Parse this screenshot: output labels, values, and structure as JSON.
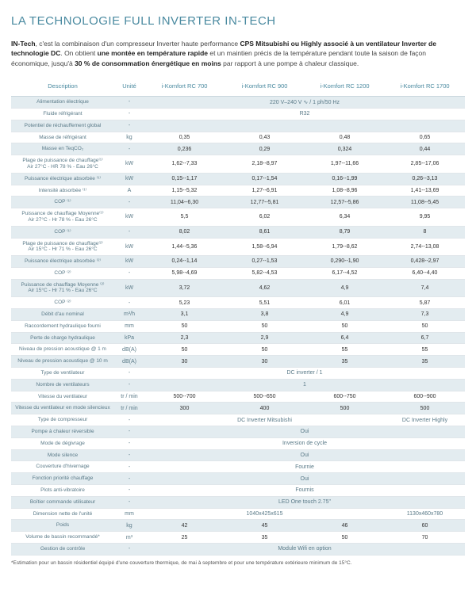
{
  "title": "LA TECHNOLOGIE FULL INVERTER IN-TECH",
  "intro_html": "<b>IN-Tech</b>, c'est la combinaison d'un compresseur Inverter haute performance <b>CPS Mitsubishi ou Highly associé à un ventilateur Inverter de technologie DC</b>. On obtient <b>une montée en température rapide</b> et un maintien précis de la température pendant toute la saison de façon économique, jusqu'à <b>30 % de consommation énergétique en moins</b> par rapport à une pompe à chaleur classique.",
  "columns": [
    "Description",
    "Unité",
    "i-Komfort RC 700",
    "i-Komfort RC 900",
    "i-Komfort RC 1200",
    "i-Komfort RC 1700"
  ],
  "colors": {
    "accent": "#4a8aa0",
    "band": "#e3ecf0",
    "border": "#e0e6ea"
  },
  "footnote": "*Estimation pour un bassin résidentiel équipé d'une couverture thermique, de mai à septembre et pour une température extérieure minimum de 15°C.",
  "rows": [
    {
      "band": true,
      "desc": "Alimentation électrique",
      "unit": "-",
      "span": "220 V–240 V ∿ / 1 ph/50 Hz"
    },
    {
      "band": false,
      "desc": "Fluide réfrigérant",
      "unit": "-",
      "span": "R32"
    },
    {
      "band": true,
      "desc": "Potentiel de réchauffement global",
      "unit": "-",
      "span": ""
    },
    {
      "band": false,
      "desc": "Masse de réfrigérant",
      "unit": "kg",
      "cells": [
        "0,35",
        "0,43",
        "0,48",
        "0,65"
      ]
    },
    {
      "band": true,
      "desc": "Masse en TeqCO₂",
      "unit": "-",
      "cells": [
        "0,236",
        "0,29",
        "0,324",
        "0,44"
      ]
    },
    {
      "band": false,
      "desc": "Plage de puissance de chauffage⁽¹⁾\nAir 27°C - HR 78 % - Eau 26°C",
      "unit": "kW",
      "cells": [
        "1,62--7,33",
        "2,18--8,97",
        "1,97--11,66",
        "2,85--17,06"
      ]
    },
    {
      "band": true,
      "desc": "Puissance électrique absorbée ⁽¹⁾",
      "unit": "kW",
      "cells": [
        "0,15--1,17",
        "0,17--1,54",
        "0,16--1,99",
        "0,26--3,13"
      ]
    },
    {
      "band": false,
      "desc": "Intensité absorbée ⁽¹⁾",
      "unit": "A",
      "cells": [
        "1,15--5,32",
        "1,27--6,91",
        "1,08--8,96",
        "1,41--13,69"
      ]
    },
    {
      "band": true,
      "desc": "COP ⁽¹⁾",
      "unit": "-",
      "cells": [
        "11,04--6,30",
        "12,77--5,81",
        "12,57--5,86",
        "11,08--5,45"
      ]
    },
    {
      "band": false,
      "desc": "Puissance de chauffage Moyenne⁽¹⁾\nAir 27°C - Hr 78 % - Eau 26°C",
      "unit": "kW",
      "cells": [
        "5,5",
        "6,02",
        "6,34",
        "9,95"
      ]
    },
    {
      "band": true,
      "desc": "COP ⁽¹⁾",
      "unit": "-",
      "cells": [
        "8,02",
        "8,61",
        "8,79",
        "8"
      ]
    },
    {
      "band": false,
      "desc": "Plage de puissance de chauffage⁽²⁾\nAir 15°C - Hr 71 % - Eau 26°C",
      "unit": "kW",
      "cells": [
        "1,44--5,36",
        "1,58--6,94",
        "1,79--8,62",
        "2,74--13,08"
      ]
    },
    {
      "band": true,
      "desc": "Puissance électrique absorbée ⁽²⁾",
      "unit": "kW",
      "cells": [
        "0,24--1,14",
        "0,27--1,53",
        "0,290--1,90",
        "0,428--2,97"
      ]
    },
    {
      "band": false,
      "desc": "COP ⁽²⁾",
      "unit": "-",
      "cells": [
        "5,98--4,69",
        "5,82--4,53",
        "6,17--4,52",
        "6,40--4,40"
      ]
    },
    {
      "band": true,
      "desc": "Puissance de chauffage Moyenne ⁽²⁾\nAir 15°C - Hr 71 % - Eau 26°C",
      "unit": "kW",
      "cells": [
        "3,72",
        "4,62",
        "4,9",
        "7,4"
      ]
    },
    {
      "band": false,
      "desc": "COP ⁽²⁾",
      "unit": "-",
      "cells": [
        "5,23",
        "5,51",
        "6,01",
        "5,87"
      ]
    },
    {
      "band": true,
      "desc": "Débit d'au nominal",
      "unit": "m³/h",
      "cells": [
        "3,1",
        "3,8",
        "4,9",
        "7,3"
      ]
    },
    {
      "band": false,
      "desc": "Raccordement hydraulique fourni",
      "unit": "mm",
      "cells": [
        "50",
        "50",
        "50",
        "50"
      ]
    },
    {
      "band": true,
      "desc": "Perte de charge hydraulique",
      "unit": "kPa",
      "cells": [
        "2,3",
        "2,9",
        "6,4",
        "6,7"
      ]
    },
    {
      "band": false,
      "desc": "Niveau de pression acoustique @ 1 m",
      "unit": "dB(A)",
      "cells": [
        "50",
        "50",
        "55",
        "55"
      ]
    },
    {
      "band": true,
      "desc": "Niveau de pression acoustique @ 10 m",
      "unit": "dB(A)",
      "cells": [
        "30",
        "30",
        "35",
        "35"
      ]
    },
    {
      "band": false,
      "desc": "Type de ventilateur",
      "unit": "-",
      "span": "DC inverter / 1"
    },
    {
      "band": true,
      "desc": "Nombre de ventilateurs",
      "unit": "-",
      "span": "1"
    },
    {
      "band": false,
      "desc": "Vitesse du ventilateur",
      "unit": "tr / min",
      "cells": [
        "500--700",
        "500--650",
        "600--750",
        "600--900"
      ]
    },
    {
      "band": true,
      "desc": "Vitesse du ventilateur en mode silencieux",
      "unit": "tr / min",
      "cells": [
        "300",
        "400",
        "500",
        "500"
      ]
    },
    {
      "band": false,
      "desc": "Type de compresseur",
      "unit": "-",
      "cells_custom": [
        {
          "colspan": 3,
          "val": "DC Inverter Mitsubishi"
        },
        {
          "colspan": 1,
          "val": "DC Inverter Highly"
        }
      ]
    },
    {
      "band": true,
      "desc": "Pompe à chaleur réversible",
      "unit": "-",
      "span": "Oui"
    },
    {
      "band": false,
      "desc": "Mode de dégivrage",
      "unit": "-",
      "span": "Inversion de cycle"
    },
    {
      "band": true,
      "desc": "Mode silence",
      "unit": "-",
      "span": "Oui"
    },
    {
      "band": false,
      "desc": "Couverture d'hivernage",
      "unit": "-",
      "span": "Fournie"
    },
    {
      "band": true,
      "desc": "Fonction priorité chauffage",
      "unit": "-",
      "span": "Oui"
    },
    {
      "band": false,
      "desc": "Plots anti-vibratoire",
      "unit": "-",
      "span": "Fournis"
    },
    {
      "band": true,
      "desc": "Boîtier commande utilisateur",
      "unit": "-",
      "span": "LED One touch 2.75\""
    },
    {
      "band": false,
      "desc": "Dimension nette de l'unité",
      "unit": "mm",
      "cells_custom": [
        {
          "colspan": 3,
          "val": "1040x425x615"
        },
        {
          "colspan": 1,
          "val": "1130x460x780"
        }
      ]
    },
    {
      "band": true,
      "desc": "Poids",
      "unit": "kg",
      "cells": [
        "42",
        "45",
        "46",
        "60"
      ]
    },
    {
      "band": false,
      "desc": "Volume de bassin recommandé*",
      "unit": "m³",
      "cells": [
        "25",
        "35",
        "50",
        "70"
      ]
    },
    {
      "band": true,
      "desc": "Gestion de contrôle",
      "unit": "-",
      "span": "Module Wifi en option"
    }
  ]
}
